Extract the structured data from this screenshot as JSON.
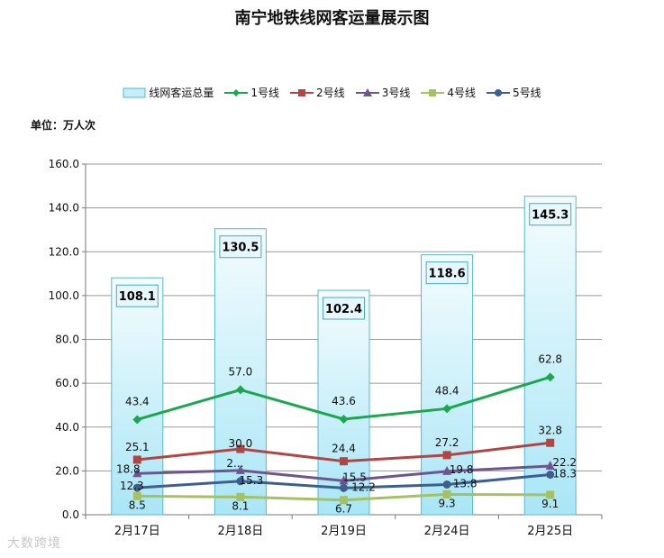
{
  "chart_data": {
    "type": "bar+line",
    "title": "南宁地铁线网客运量展示图",
    "unit_label": "单位：万人次",
    "categories": [
      "2月17日",
      "2月18日",
      "2月19日",
      "2月24日",
      "2月25日"
    ],
    "ylim": [
      0,
      160
    ],
    "yticks": [
      "0.0",
      "20.0",
      "40.0",
      "60.0",
      "80.0",
      "100.0",
      "120.0",
      "140.0",
      "160.0"
    ],
    "grid": true,
    "legend_position": "top",
    "bar_series": {
      "name": "线网客运总量",
      "values": [
        108.1,
        130.5,
        102.4,
        118.6,
        145.3
      ],
      "labels": [
        "108.1",
        "130.5",
        "102.4",
        "118.6",
        "145.3"
      ]
    },
    "line_series": [
      {
        "name": "1号线",
        "color": "#1aa84f",
        "marker": "diamond",
        "values": [
          43.4,
          57.0,
          43.6,
          48.4,
          62.8
        ],
        "labels": [
          "43.4",
          "57.0",
          "43.6",
          "48.4",
          "62.8"
        ]
      },
      {
        "name": "2号线",
        "color": "#b04643",
        "marker": "square",
        "values": [
          25.1,
          30.0,
          24.4,
          27.2,
          32.8
        ],
        "labels": [
          "25.1",
          "30.0",
          "24.4",
          "27.2",
          "32.8"
        ]
      },
      {
        "name": "3号线",
        "color": "#6f5590",
        "marker": "triangle",
        "values": [
          18.8,
          20.2,
          15.5,
          19.8,
          22.2
        ],
        "labels": [
          "18.8",
          "2...",
          "15.5",
          "19.8",
          "22.2"
        ]
      },
      {
        "name": "4号线",
        "color": "#a5c262",
        "marker": "square",
        "values": [
          8.5,
          8.1,
          6.7,
          9.3,
          9.1
        ],
        "labels": [
          "8.5",
          "8.1",
          "6.7",
          "9.3",
          "9.1"
        ]
      },
      {
        "name": "5号线",
        "color": "#3d5f8f",
        "marker": "circle",
        "values": [
          12.3,
          15.3,
          12.2,
          13.8,
          18.3
        ],
        "labels": [
          "12.3",
          "15.3",
          "12.2",
          "13.8",
          "18.3"
        ]
      }
    ]
  },
  "watermark": "大数跨境"
}
